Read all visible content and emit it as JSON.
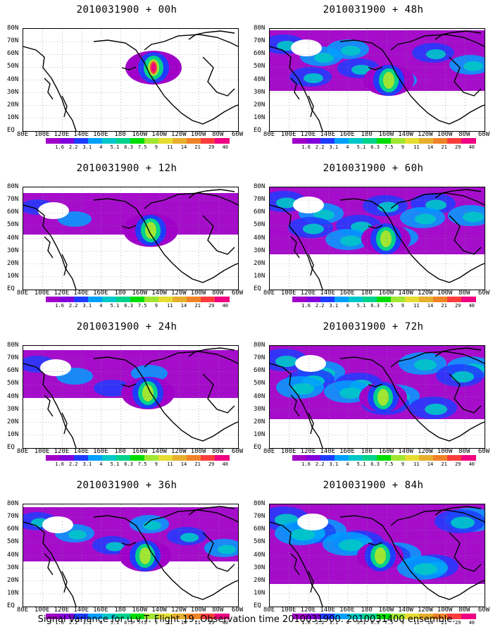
{
  "footer_caption": "Signal Variance for u,v,T. Flight 19. Observation time 2010031900. 2010031400 ensemble.",
  "lat_labels": [
    "80N",
    "70N",
    "60N",
    "50N",
    "40N",
    "30N",
    "20N",
    "10N",
    "EQ"
  ],
  "lon_labels": [
    "80E",
    "100E",
    "120E",
    "140E",
    "160E",
    "180",
    "160W",
    "140W",
    "120W",
    "100W",
    "80W",
    "60W"
  ],
  "colorbar": {
    "labels": [
      "1.6",
      "2.2",
      "3.1",
      "4",
      "5.1",
      "6.3",
      "7.5",
      "9",
      "11",
      "14",
      "21",
      "29",
      "40"
    ],
    "colors": [
      "#a000c8",
      "#8200dc",
      "#1e3cff",
      "#00a0ff",
      "#00c8c8",
      "#00d28c",
      "#00dc00",
      "#a0e632",
      "#e6dc32",
      "#e6af2d",
      "#f08228",
      "#fa3c3c",
      "#f00082"
    ]
  },
  "panels": [
    {
      "id": "p00",
      "title": "2010031900 + 00h",
      "level": 0
    },
    {
      "id": "p48",
      "title": "2010031900 + 48h",
      "level": 4
    },
    {
      "id": "p12",
      "title": "2010031900 + 12h",
      "level": 1
    },
    {
      "id": "p60",
      "title": "2010031900 + 60h",
      "level": 5
    },
    {
      "id": "p24",
      "title": "2010031900 + 24h",
      "level": 2
    },
    {
      "id": "p72",
      "title": "2010031900 + 72h",
      "level": 6
    },
    {
      "id": "p36",
      "title": "2010031900 + 36h",
      "level": 3
    },
    {
      "id": "p84",
      "title": "2010031900 + 84h",
      "level": 7
    }
  ]
}
